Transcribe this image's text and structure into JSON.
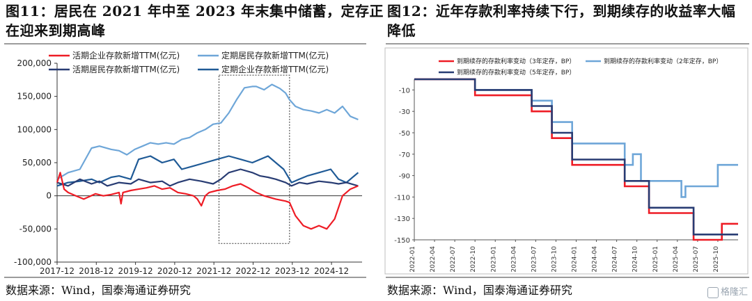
{
  "left": {
    "title_lines": [
      "图11：居民在 2021 年中至 2023 年末集中储蓄，定存正",
      "在迎来到期高峰"
    ],
    "source": "数据来源：Wind，国泰海通证券研究"
  },
  "right": {
    "title_lines": [
      "图12：近年存款利率持续下行，到期续存的收益率大幅",
      "降低"
    ],
    "source": "数据来源：Wind，国泰海通证券研究"
  },
  "watermark": "格隆汇",
  "colors": {
    "red": "#ee1c25",
    "light_blue": "#6ea6d8",
    "dark_navy": "#283c73",
    "mid_blue": "#1f5a96"
  },
  "chart_data": [
    {
      "type": "line",
      "ylim": [
        -100000,
        200000
      ],
      "y_ticks": [
        -100000,
        -50000,
        0,
        50000,
        100000,
        150000,
        200000
      ],
      "y_tick_labels": [
        "-100,000",
        "-50,000",
        "0",
        "50,000",
        "100,000",
        "150,000",
        "200,000"
      ],
      "x_tick_labels": [
        "2017-12",
        "2018-12",
        "2019-12",
        "2020-12",
        "2021-12",
        "2022-12",
        "2023-12",
        "2024-12"
      ],
      "x_range": [
        2017.92,
        2025.7
      ],
      "highlight_box": {
        "x": [
          2022.05,
          2023.85
        ],
        "y": [
          -72000,
          182000
        ]
      },
      "legend_placement": "top",
      "series": [
        {
          "name": "活期企业存款新增TTM(亿元)",
          "color": "#ee1c25",
          "x": [
            2017.92,
            2018.0,
            2018.1,
            2018.2,
            2018.4,
            2018.6,
            2018.9,
            2019.1,
            2019.3,
            2019.5,
            2019.55,
            2019.6,
            2019.8,
            2020.0,
            2020.2,
            2020.4,
            2020.6,
            2020.8,
            2021.0,
            2021.2,
            2021.4,
            2021.5,
            2021.6,
            2021.7,
            2021.8,
            2022.0,
            2022.2,
            2022.4,
            2022.6,
            2022.8,
            2023.0,
            2023.2,
            2023.5,
            2023.75,
            2023.85,
            2024.0,
            2024.2,
            2024.4,
            2024.6,
            2024.8,
            2025.0,
            2025.2,
            2025.4,
            2025.6
          ],
          "values": [
            20000,
            35000,
            10000,
            5000,
            0,
            -5000,
            3000,
            0,
            2000,
            5000,
            -12000,
            5000,
            8000,
            10000,
            12000,
            15000,
            10000,
            12000,
            5000,
            3000,
            0,
            -5000,
            -15000,
            0,
            5000,
            8000,
            10000,
            15000,
            18000,
            12000,
            5000,
            0,
            -5000,
            -8000,
            -10000,
            -30000,
            -45000,
            -50000,
            -45000,
            -50000,
            -35000,
            0,
            10000,
            15000
          ]
        },
        {
          "name": "定期居民存款新增TTM(亿元)",
          "color": "#6ea6d8",
          "x": [
            2017.92,
            2018.2,
            2018.5,
            2018.8,
            2019.0,
            2019.3,
            2019.5,
            2019.7,
            2019.9,
            2020.1,
            2020.3,
            2020.5,
            2020.7,
            2020.9,
            2021.1,
            2021.3,
            2021.5,
            2021.7,
            2021.9,
            2022.1,
            2022.3,
            2022.5,
            2022.7,
            2022.9,
            2023.0,
            2023.2,
            2023.4,
            2023.6,
            2023.75,
            2023.85,
            2024.0,
            2024.2,
            2024.4,
            2024.6,
            2024.8,
            2025.0,
            2025.2,
            2025.4,
            2025.6
          ],
          "values": [
            25000,
            35000,
            40000,
            72000,
            75000,
            70000,
            68000,
            62000,
            70000,
            75000,
            80000,
            78000,
            80000,
            78000,
            85000,
            88000,
            95000,
            100000,
            108000,
            110000,
            125000,
            145000,
            163000,
            165000,
            165000,
            160000,
            168000,
            162000,
            155000,
            145000,
            135000,
            130000,
            128000,
            125000,
            130000,
            125000,
            135000,
            120000,
            115000
          ]
        },
        {
          "name": "活期居民存款新增TTM(亿元)",
          "color": "#283c73",
          "x": [
            2017.92,
            2018.2,
            2018.5,
            2018.8,
            2019.0,
            2019.2,
            2019.5,
            2019.8,
            2020.0,
            2020.3,
            2020.6,
            2020.8,
            2021.0,
            2021.3,
            2021.6,
            2021.9,
            2022.1,
            2022.3,
            2022.6,
            2022.9,
            2023.1,
            2023.3,
            2023.5,
            2023.75,
            2023.9,
            2024.1,
            2024.3,
            2024.6,
            2024.9,
            2025.1,
            2025.3,
            2025.6
          ],
          "values": [
            20000,
            15000,
            25000,
            18000,
            22000,
            15000,
            20000,
            18000,
            25000,
            20000,
            22000,
            15000,
            20000,
            25000,
            22000,
            18000,
            25000,
            35000,
            40000,
            35000,
            30000,
            28000,
            25000,
            20000,
            15000,
            20000,
            18000,
            22000,
            20000,
            18000,
            20000,
            15000
          ]
        },
        {
          "name": "定期企业存款新增TTM(亿元)",
          "color": "#1f5a96",
          "x": [
            2017.92,
            2018.2,
            2018.5,
            2018.8,
            2019.0,
            2019.3,
            2019.5,
            2019.8,
            2020.0,
            2020.3,
            2020.6,
            2020.9,
            2021.1,
            2021.4,
            2021.7,
            2022.0,
            2022.3,
            2022.6,
            2022.9,
            2023.1,
            2023.3,
            2023.5,
            2023.7,
            2023.9,
            2024.1,
            2024.3,
            2024.6,
            2024.9,
            2025.1,
            2025.3,
            2025.5,
            2025.6
          ],
          "values": [
            15000,
            20000,
            22000,
            25000,
            20000,
            28000,
            30000,
            25000,
            55000,
            60000,
            50000,
            55000,
            40000,
            45000,
            50000,
            55000,
            60000,
            55000,
            50000,
            55000,
            60000,
            50000,
            40000,
            20000,
            25000,
            30000,
            35000,
            40000,
            25000,
            20000,
            30000,
            35000
          ]
        }
      ]
    },
    {
      "type": "line",
      "step": true,
      "ylim": [
        -150,
        0
      ],
      "y_ticks": [
        -10,
        -30,
        -50,
        -70,
        -90,
        -110,
        -130,
        -150
      ],
      "y_tick_labels": [
        "-10",
        "-30",
        "-50",
        "-70",
        "-90",
        "-110",
        "-130",
        "-150"
      ],
      "x_tick_labels": [
        "2022-01",
        "2022-04",
        "2022-07",
        "2022-10",
        "2023-01",
        "2023-04",
        "2023-07",
        "2023-10",
        "2024-01",
        "2024-04",
        "2024-07",
        "2024-10",
        "2025-01",
        "2025-04",
        "2025-07",
        "2025-10"
      ],
      "x_range": [
        2022.0,
        2026.0
      ],
      "legend_placement": "top",
      "series": [
        {
          "name": "到期续存的存款利率变动（3年定存，BP）",
          "color": "#ee1c25",
          "x": [
            2022.0,
            2022.75,
            2023.45,
            2023.7,
            2023.95,
            2024.6,
            2024.9,
            2025.45,
            2025.8,
            2026.0
          ],
          "values": [
            0,
            -15,
            -30,
            -55,
            -80,
            -100,
            -125,
            -150,
            -135,
            -135
          ]
        },
        {
          "name": "到期续存的存款利率变动（2年定存，BP）",
          "color": "#6ea6d8",
          "x": [
            2022.0,
            2022.75,
            2023.45,
            2023.7,
            2023.95,
            2024.6,
            2024.7,
            2024.8,
            2024.9,
            2025.3,
            2025.35,
            2025.45,
            2025.75,
            2026.0
          ],
          "values": [
            0,
            -10,
            -20,
            -40,
            -60,
            -80,
            -70,
            -95,
            -95,
            -110,
            -100,
            -100,
            -80,
            -80
          ]
        },
        {
          "name": "到期续存的存款利率变动（5年定存，BP）",
          "color": "#283c73",
          "x": [
            2022.0,
            2022.75,
            2023.45,
            2023.7,
            2023.95,
            2024.6,
            2024.9,
            2025.45,
            2026.0
          ],
          "values": [
            0,
            -10,
            -25,
            -50,
            -75,
            -95,
            -120,
            -145,
            -145
          ]
        }
      ]
    }
  ]
}
